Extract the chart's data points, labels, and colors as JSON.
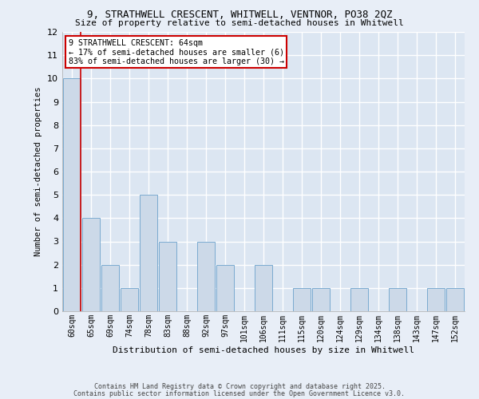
{
  "title_line1": "9, STRATHWELL CRESCENT, WHITWELL, VENTNOR, PO38 2QZ",
  "title_line2": "Size of property relative to semi-detached houses in Whitwell",
  "xlabel": "Distribution of semi-detached houses by size in Whitwell",
  "ylabel": "Number of semi-detached properties",
  "bins": [
    "60sqm",
    "65sqm",
    "69sqm",
    "74sqm",
    "78sqm",
    "83sqm",
    "88sqm",
    "92sqm",
    "97sqm",
    "101sqm",
    "106sqm",
    "111sqm",
    "115sqm",
    "120sqm",
    "124sqm",
    "129sqm",
    "134sqm",
    "138sqm",
    "143sqm",
    "147sqm",
    "152sqm"
  ],
  "values": [
    10,
    4,
    2,
    1,
    5,
    3,
    0,
    3,
    2,
    0,
    2,
    0,
    1,
    1,
    0,
    1,
    0,
    1,
    0,
    1,
    1
  ],
  "property_marker_index": 0,
  "bar_color": "#ccd9e8",
  "bar_edge_color": "#7aaad0",
  "marker_line_color": "#cc0000",
  "ylim": [
    0,
    12
  ],
  "yticks": [
    0,
    1,
    2,
    3,
    4,
    5,
    6,
    7,
    8,
    9,
    10,
    11,
    12
  ],
  "annotation_title": "9 STRATHWELL CRESCENT: 64sqm",
  "annotation_line1": "← 17% of semi-detached houses are smaller (6)",
  "annotation_line2": "83% of semi-detached houses are larger (30) →",
  "footer_line1": "Contains HM Land Registry data © Crown copyright and database right 2025.",
  "footer_line2": "Contains public sector information licensed under the Open Government Licence v3.0.",
  "bg_color": "#e8eef7",
  "plot_bg_color": "#dce6f2",
  "grid_color": "#ffffff",
  "annotation_box_color": "#ffffff",
  "annotation_border_color": "#cc0000"
}
